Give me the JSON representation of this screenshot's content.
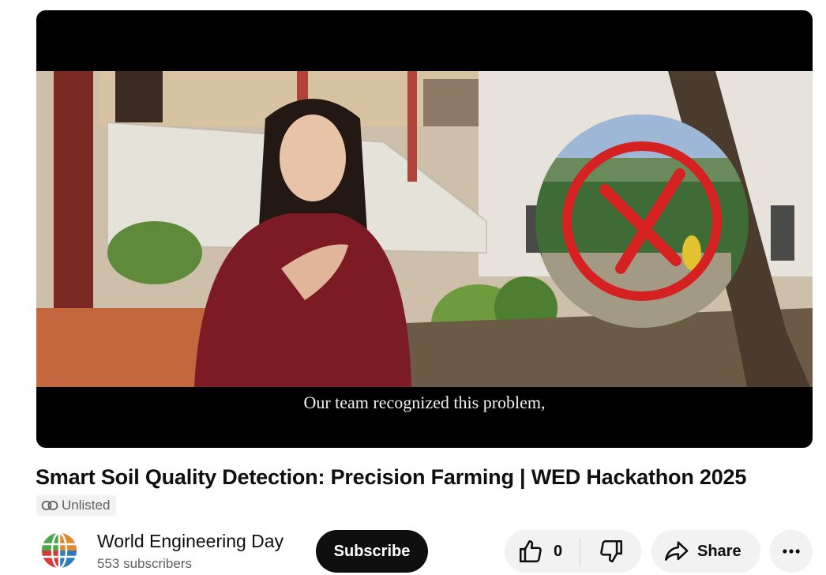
{
  "video": {
    "caption": "Our team recognized this problem,"
  },
  "title": "Smart Soil Quality Detection: Precision Farming | WED Hackathon 2025",
  "badge": {
    "label": "Unlisted",
    "icon": "link-icon"
  },
  "channel": {
    "name": "World Engineering Day",
    "subscribers": "553 subscribers",
    "avatar_icon": "globe-logo-icon"
  },
  "actions": {
    "subscribe_label": "Subscribe",
    "like_count": "0",
    "share_label": "Share"
  },
  "colors": {
    "accent": "#0f0f0f",
    "button_bg": "#f2f2f2",
    "secondary_text": "#606060"
  }
}
